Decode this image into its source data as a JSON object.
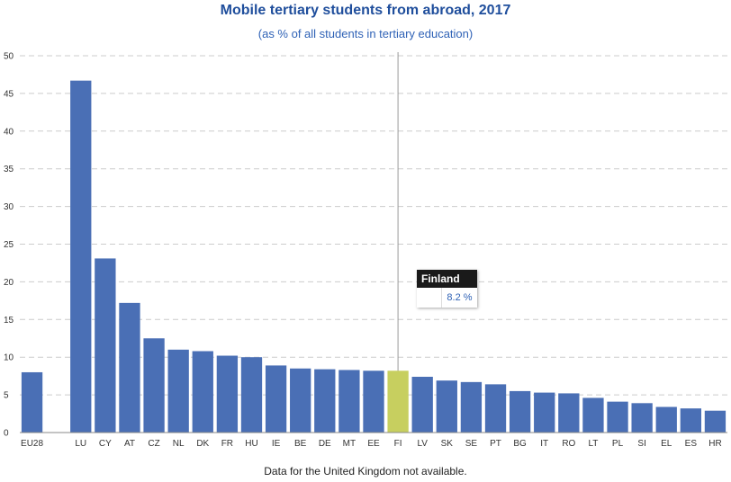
{
  "chart_data": {
    "type": "bar",
    "title": "Mobile tertiary students from abroad, 2017",
    "subtitle": "(as % of all students in tertiary education)",
    "footnote": "Data for the United Kingdom not available.",
    "categories": [
      "EU28",
      "",
      "LU",
      "CY",
      "AT",
      "CZ",
      "NL",
      "DK",
      "FR",
      "HU",
      "IE",
      "BE",
      "DE",
      "MT",
      "EE",
      "FI",
      "LV",
      "SK",
      "SE",
      "PT",
      "BG",
      "IT",
      "RO",
      "LT",
      "PL",
      "SI",
      "EL",
      "ES",
      "HR"
    ],
    "values": [
      8.0,
      null,
      46.7,
      23.1,
      17.2,
      12.5,
      11.0,
      10.8,
      10.2,
      10.0,
      8.9,
      8.5,
      8.4,
      8.3,
      8.2,
      8.2,
      7.4,
      6.9,
      6.7,
      6.4,
      5.5,
      5.3,
      5.2,
      4.6,
      4.1,
      3.9,
      3.4,
      3.2,
      2.9
    ],
    "ylim": [
      0,
      50
    ],
    "yticks": [
      0,
      5,
      10,
      15,
      20,
      25,
      30,
      35,
      40,
      45,
      50
    ],
    "grid": true,
    "highlight_category": "FI",
    "colors": {
      "bar": "#4a6fb5",
      "highlight": "#c7cf5f",
      "grid": "#cccccc",
      "crosshair": "#999999"
    },
    "tooltip": {
      "title": "Finland",
      "value": "8.2 %"
    }
  }
}
